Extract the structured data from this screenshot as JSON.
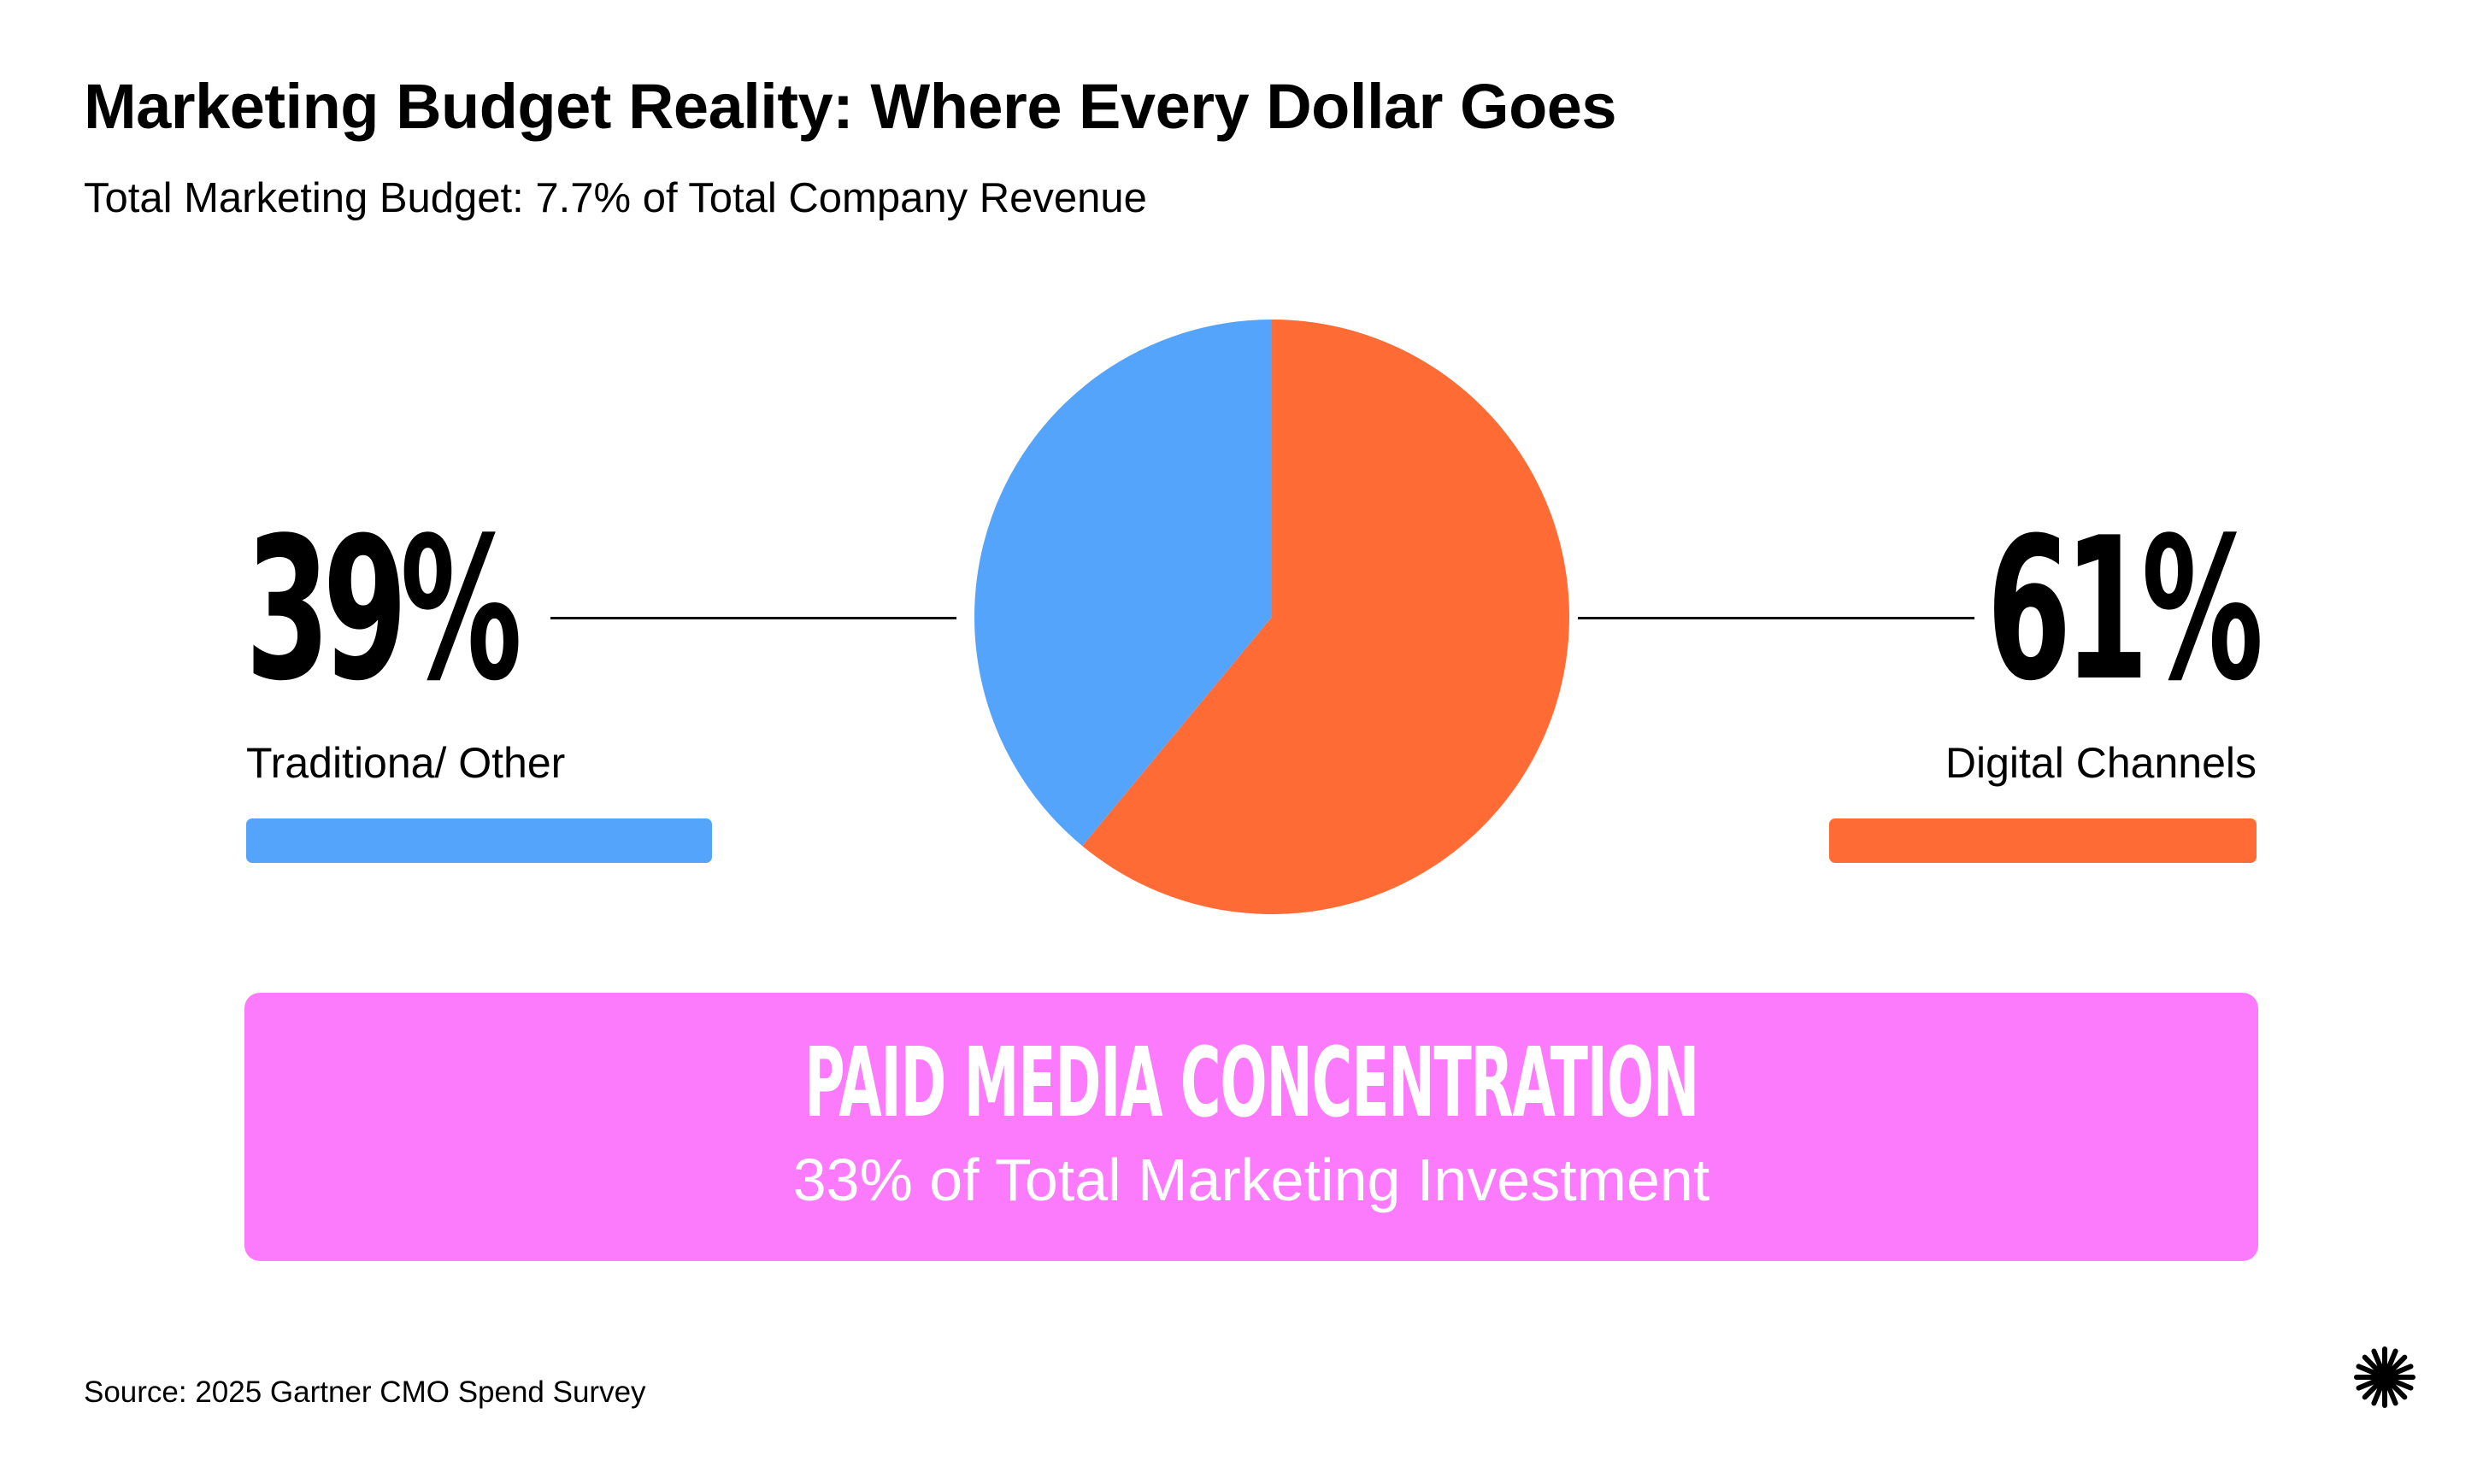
{
  "colors": {
    "traditional": "#55a4fc",
    "digital": "#ff6b35",
    "banner": "#fc7bfc"
  },
  "chart_data": {
    "type": "pie",
    "title": "Marketing Budget Reality: Where Every Dollar Goes",
    "subtitle": "Total Marketing Budget: 7.7% of Total Company Revenue",
    "slices": [
      {
        "label": "Traditiona/ Other",
        "value": 39,
        "display": "39%"
      },
      {
        "label": "Digital Channels",
        "value": 61,
        "display": "61%"
      }
    ]
  },
  "callout": {
    "title": "PAID MEDIA CONCENTRATION",
    "subtitle": "33% of Total Marketing Investment"
  },
  "source": "Source: 2025 Gartner CMO Spend Survey",
  "logo_icon": "starburst-icon"
}
